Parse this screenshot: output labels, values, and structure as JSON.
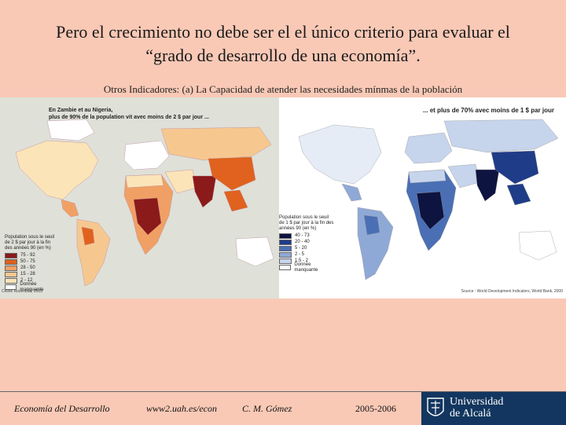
{
  "slide": {
    "title_line1": "Pero el crecimiento no debe ser el el único criterio para evaluar el",
    "title_line2": "“grado de desarrollo de una economía”.",
    "subtitle": "Otros Indicadores: (a) La Capacidad de atender las necesidades mínmas de la población"
  },
  "map_left": {
    "caption_line1": "En Zambie et au Nigeria,",
    "caption_line2": "plus de 90% de la population vit avec moins de 2 $ par jour ...",
    "legend_title_line1": "Population sous le seuil",
    "legend_title_line2": "de 2 $ par jour à la fin",
    "legend_title_line3": "des années 90 (en %)",
    "legend": [
      {
        "label": "75 - 92",
        "color": "#8b1a1a"
      },
      {
        "label": "50 - 75",
        "color": "#e0621e"
      },
      {
        "label": "28 - 50",
        "color": "#f0a064"
      },
      {
        "label": "15 - 28",
        "color": "#f6c890"
      },
      {
        "label": "2 - 12",
        "color": "#fbe4b8"
      },
      {
        "label": "Donnée manquante",
        "color": "#ffffff"
      }
    ],
    "source": "Céline Rozenblat, 2003"
  },
  "map_right": {
    "caption": "... et plus de 70% avec moins de 1 $ par jour",
    "legend_title_line1": "Population sous le seuil",
    "legend_title_line2": "de 1 $ par jour à la fin des",
    "legend_title_line3": "années 90 (en %)",
    "legend": [
      {
        "label": "40 - 73",
        "color": "#0d1440"
      },
      {
        "label": "20 - 40",
        "color": "#1f3c88"
      },
      {
        "label": "5 - 20",
        "color": "#4a6fb5"
      },
      {
        "label": "2 - 5",
        "color": "#8fa9d6"
      },
      {
        "label": "1.5 - 2",
        "color": "#c6d4ec"
      },
      {
        "label": "Donnée manquante",
        "color": "#ffffff"
      }
    ],
    "source": "Source : World Development Indicators, World Bank, 2000"
  },
  "footer": {
    "course": "Economía del Desarrollo",
    "url": "www2.uah.es/econ",
    "author": "C. M. Gómez",
    "years": "2005-2006",
    "university_line1": "Universidad",
    "university_line2": "de Alcalá"
  }
}
